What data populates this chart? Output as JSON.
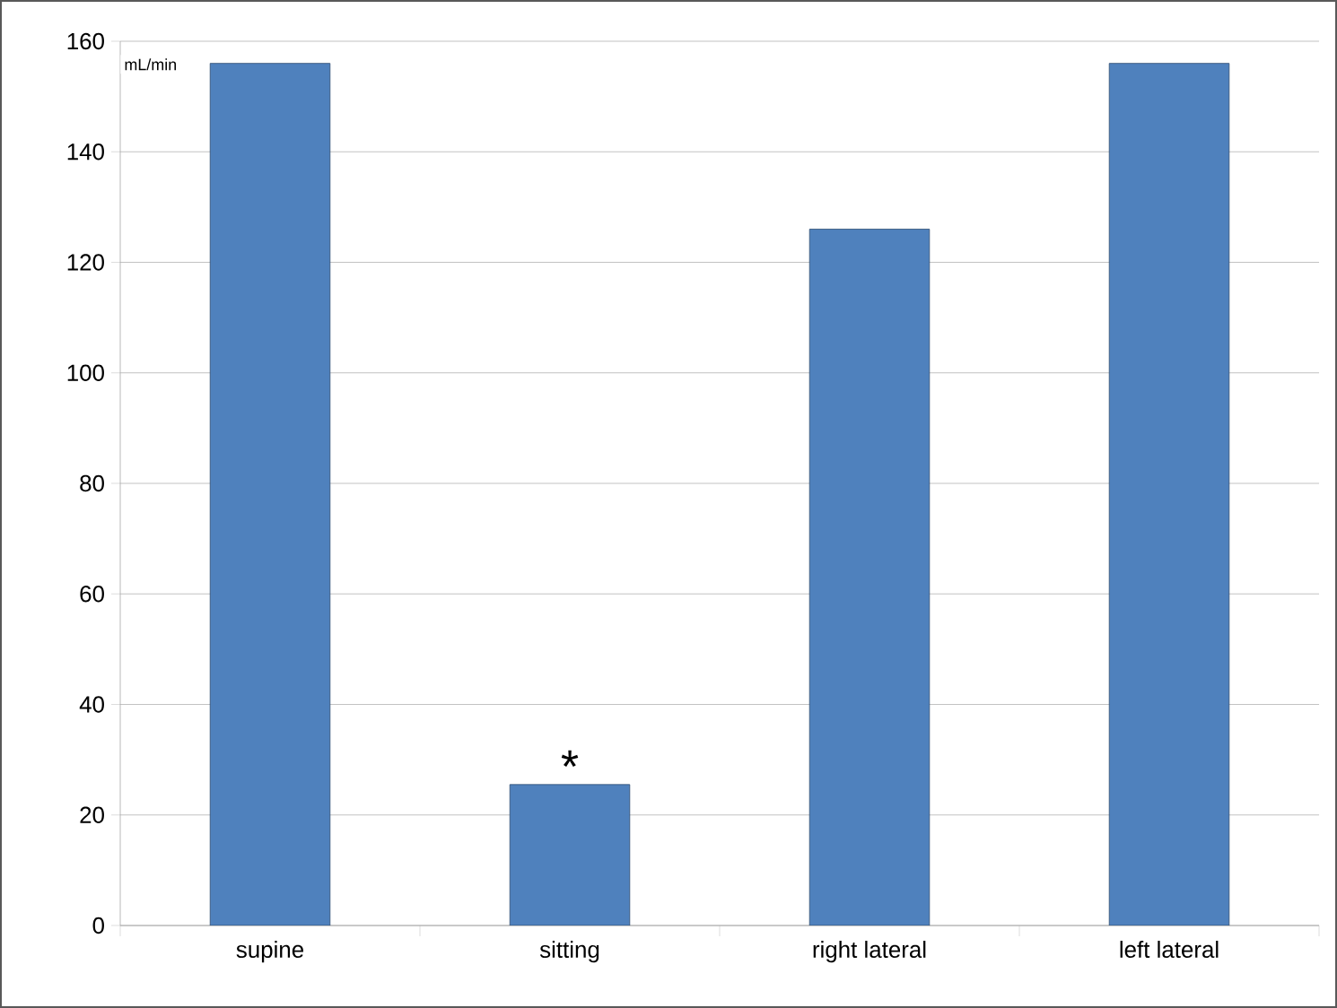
{
  "chart_data": {
    "type": "bar",
    "categories": [
      "supine",
      "sitting",
      "right lateral",
      "left lateral"
    ],
    "values": [
      156,
      25.5,
      126,
      156
    ],
    "color": "#4f81bd",
    "ylabel": "mL/min",
    "ylim": [
      0,
      160
    ],
    "yticks": [
      0,
      20,
      40,
      60,
      80,
      100,
      120,
      140,
      160
    ],
    "grid": "y",
    "annotations": [
      {
        "text": "*",
        "x": "sitting",
        "y": 25.5
      }
    ]
  }
}
